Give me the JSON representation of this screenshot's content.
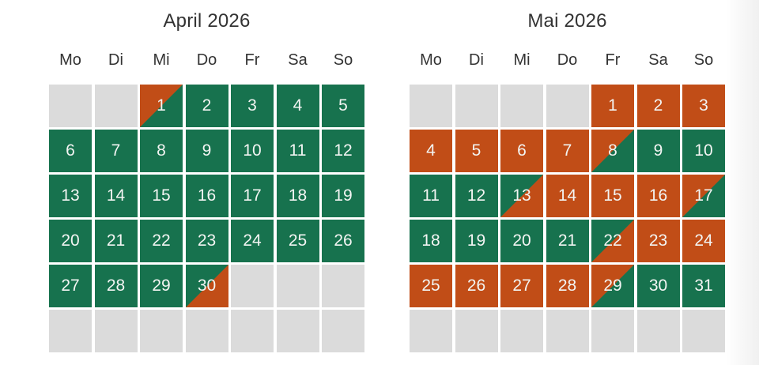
{
  "page": {
    "background": "#ffffff"
  },
  "colors": {
    "available": "#17724e",
    "booked": "#c14d17",
    "empty_cell": "#dbdbdb",
    "heading_text": "#333333",
    "day_text": "#f3f5f3"
  },
  "weekdays": [
    "Mo",
    "Di",
    "Mi",
    "Do",
    "Fr",
    "Sa",
    "So"
  ],
  "calendars": [
    {
      "title": "April 2026",
      "cells": [
        {
          "day": "",
          "state": "empty"
        },
        {
          "day": "",
          "state": "empty"
        },
        {
          "day": "1",
          "state": "booked_free"
        },
        {
          "day": "2",
          "state": "free"
        },
        {
          "day": "3",
          "state": "free"
        },
        {
          "day": "4",
          "state": "free"
        },
        {
          "day": "5",
          "state": "free"
        },
        {
          "day": "6",
          "state": "free"
        },
        {
          "day": "7",
          "state": "free"
        },
        {
          "day": "8",
          "state": "free"
        },
        {
          "day": "9",
          "state": "free"
        },
        {
          "day": "10",
          "state": "free"
        },
        {
          "day": "11",
          "state": "free"
        },
        {
          "day": "12",
          "state": "free"
        },
        {
          "day": "13",
          "state": "free"
        },
        {
          "day": "14",
          "state": "free"
        },
        {
          "day": "15",
          "state": "free"
        },
        {
          "day": "16",
          "state": "free"
        },
        {
          "day": "17",
          "state": "free"
        },
        {
          "day": "18",
          "state": "free"
        },
        {
          "day": "19",
          "state": "free"
        },
        {
          "day": "20",
          "state": "free"
        },
        {
          "day": "21",
          "state": "free"
        },
        {
          "day": "22",
          "state": "free"
        },
        {
          "day": "23",
          "state": "free"
        },
        {
          "day": "24",
          "state": "free"
        },
        {
          "day": "25",
          "state": "free"
        },
        {
          "day": "26",
          "state": "free"
        },
        {
          "day": "27",
          "state": "free"
        },
        {
          "day": "28",
          "state": "free"
        },
        {
          "day": "29",
          "state": "free"
        },
        {
          "day": "30",
          "state": "free_booked"
        },
        {
          "day": "",
          "state": "empty"
        },
        {
          "day": "",
          "state": "empty"
        },
        {
          "day": "",
          "state": "empty"
        },
        {
          "day": "",
          "state": "empty"
        },
        {
          "day": "",
          "state": "empty"
        },
        {
          "day": "",
          "state": "empty"
        },
        {
          "day": "",
          "state": "empty"
        },
        {
          "day": "",
          "state": "empty"
        },
        {
          "day": "",
          "state": "empty"
        },
        {
          "day": "",
          "state": "empty"
        }
      ]
    },
    {
      "title": "Mai 2026",
      "cells": [
        {
          "day": "",
          "state": "empty"
        },
        {
          "day": "",
          "state": "empty"
        },
        {
          "day": "",
          "state": "empty"
        },
        {
          "day": "",
          "state": "empty"
        },
        {
          "day": "1",
          "state": "booked"
        },
        {
          "day": "2",
          "state": "booked"
        },
        {
          "day": "3",
          "state": "booked"
        },
        {
          "day": "4",
          "state": "booked"
        },
        {
          "day": "5",
          "state": "booked"
        },
        {
          "day": "6",
          "state": "booked"
        },
        {
          "day": "7",
          "state": "booked"
        },
        {
          "day": "8",
          "state": "booked_free"
        },
        {
          "day": "9",
          "state": "free"
        },
        {
          "day": "10",
          "state": "free"
        },
        {
          "day": "11",
          "state": "free"
        },
        {
          "day": "12",
          "state": "free"
        },
        {
          "day": "13",
          "state": "free_booked"
        },
        {
          "day": "14",
          "state": "booked"
        },
        {
          "day": "15",
          "state": "booked"
        },
        {
          "day": "16",
          "state": "booked"
        },
        {
          "day": "17",
          "state": "booked_free"
        },
        {
          "day": "18",
          "state": "free"
        },
        {
          "day": "19",
          "state": "free"
        },
        {
          "day": "20",
          "state": "free"
        },
        {
          "day": "21",
          "state": "free"
        },
        {
          "day": "22",
          "state": "free_booked"
        },
        {
          "day": "23",
          "state": "booked"
        },
        {
          "day": "24",
          "state": "booked"
        },
        {
          "day": "25",
          "state": "booked"
        },
        {
          "day": "26",
          "state": "booked"
        },
        {
          "day": "27",
          "state": "booked"
        },
        {
          "day": "28",
          "state": "booked"
        },
        {
          "day": "29",
          "state": "booked_free"
        },
        {
          "day": "30",
          "state": "free"
        },
        {
          "day": "31",
          "state": "free"
        },
        {
          "day": "",
          "state": "empty"
        },
        {
          "day": "",
          "state": "empty"
        },
        {
          "day": "",
          "state": "empty"
        },
        {
          "day": "",
          "state": "empty"
        },
        {
          "day": "",
          "state": "empty"
        },
        {
          "day": "",
          "state": "empty"
        },
        {
          "day": "",
          "state": "empty"
        }
      ]
    }
  ]
}
